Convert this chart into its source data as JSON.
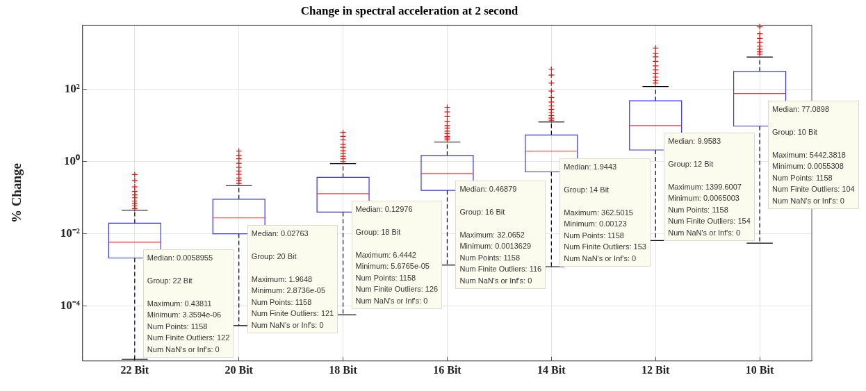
{
  "chart_data": {
    "type": "box",
    "title": "Change in spectral acceleration at 2 second",
    "ylabel": "% Change",
    "categories": [
      "22 Bit",
      "20 Bit",
      "18 Bit",
      "16 Bit",
      "14 Bit",
      "12 Bit",
      "10 Bit"
    ],
    "log": "y",
    "grid": true,
    "ylim": [
      3e-06,
      6000
    ],
    "yticks": [
      {
        "value": 0.0001,
        "label": "10⁻⁴"
      },
      {
        "value": 0.01,
        "label": "10⁻²"
      },
      {
        "value": 1,
        "label": "10⁰"
      },
      {
        "value": 100,
        "label": "10²"
      }
    ],
    "series": [
      {
        "color": "#3333ff",
        "boxes": [
          {
            "low": 3.3594e-06,
            "q1": 0.00214,
            "median": 0.0058955,
            "q3": 0.0197,
            "high": 0.045,
            "outliers": [
              0.05,
              0.06,
              0.07,
              0.08,
              0.1,
              0.12,
              0.15,
              0.2,
              0.3,
              0.43811
            ]
          },
          {
            "low": 2.8736e-05,
            "q1": 0.01,
            "median": 0.02763,
            "q3": 0.091,
            "high": 0.217,
            "outliers": [
              0.25,
              0.3,
              0.35,
              0.45,
              0.55,
              0.7,
              0.9,
              1.2,
              1.5,
              1.9648
            ]
          },
          {
            "low": 5.6765e-05,
            "q1": 0.04,
            "median": 0.12976,
            "q3": 0.367,
            "high": 0.88,
            "outliers": [
              1,
              1.2,
              1.4,
              1.7,
              2,
              2.5,
              3,
              4,
              5,
              6.4442
            ]
          },
          {
            "low": 0.0013629,
            "q1": 0.16,
            "median": 0.46879,
            "q3": 1.48,
            "high": 3.5,
            "outliers": [
              4,
              4.5,
              5,
              6,
              7,
              8.5,
              10,
              13,
              18,
              24,
              32.0652
            ]
          },
          {
            "low": 0.00123,
            "q1": 0.52,
            "median": 1.9443,
            "q3": 5.5,
            "high": 12.6,
            "outliers": [
              14,
              16,
              19,
              23,
              28,
              35,
              45,
              60,
              90,
              150,
              250,
              362.5015
            ]
          },
          {
            "low": 0.0065003,
            "q1": 2.1,
            "median": 9.9583,
            "q3": 48.5,
            "high": 120,
            "outliers": [
              150,
              180,
              220,
              280,
              350,
              450,
              600,
              800,
              1000,
              1399.6007
            ]
          },
          {
            "low": 0.0055308,
            "q1": 9.7,
            "median": 77.0898,
            "q3": 316,
            "high": 790,
            "outliers": [
              950,
              1100,
              1300,
              1600,
              2000,
              2600,
              3500,
              5442.3818
            ]
          }
        ]
      }
    ],
    "annotations": [
      {
        "text": "Median: 0.0058955",
        "x": "22 Bit",
        "y": 0.0058955
      },
      "Group: 22 Bit",
      "Maximum: 0.43811",
      "Minimum: 3.3594e-06",
      "Num Points: 1158",
      "Num Finite Outliers: 122",
      "Num NaN's or Inf's: 0",
      {
        "text": "Median: 0.02763",
        "x": "20 Bit",
        "y": 0.02763
      },
      "Group: 20 Bit",
      "Maximum: 1.9648",
      "Minimum: 2.8736e-05",
      "Num Points: 1158",
      "Num Finite Outliers: 121",
      "Num NaN's or Inf's: 0",
      {
        "text": "Median: 0.12976",
        "x": "18 Bit",
        "y": 0.12976
      },
      "Group: 18 Bit",
      "Maximum: 6.4442",
      "Minimum: 5.6765e-05",
      "Num Points: 1158",
      "Num Finite Outliers: 126",
      "Num NaN's or Inf's: 0",
      {
        "text": "Median: 0.46879",
        "x": "16 Bit",
        "y": 0.46879
      },
      "Group: 16 Bit",
      "Maximum: 32.0652",
      "Minimum: 0.0013629",
      "Num Points: 1158",
      "Num Finite Outliers: 116",
      "Num NaN's or Inf's: 0",
      {
        "text": "Median: 1.9443",
        "x": "14 Bit",
        "y": 1.9443
      },
      "Group: 14 Bit",
      "Maximum: 362.5015",
      "Minimum: 0.00123",
      "Num Points: 1158",
      "Num Finite Outliers: 153",
      "Num NaN's or Inf's: 0",
      {
        "text": "Median: 9.9583",
        "x": "12 Bit",
        "y": 9.9583
      },
      "Group: 12 Bit",
      "Maximum: 1399.6007",
      "Minimum: 0.0065003",
      "Num Points: 1158",
      "Num Finite Outliers: 154",
      "Num NaN's or Inf's: 0",
      {
        "text": "Median: 77.0898",
        "x": "10 Bit",
        "y": 77.0898
      },
      "Group: 10 Bit",
      "Maximum: 5442.3818",
      "Minimum: 0.0055308",
      "Num Points: 1158",
      "Num Finite Outliers: 104",
      "Num NaN's or Inf's: 0"
    ]
  }
}
